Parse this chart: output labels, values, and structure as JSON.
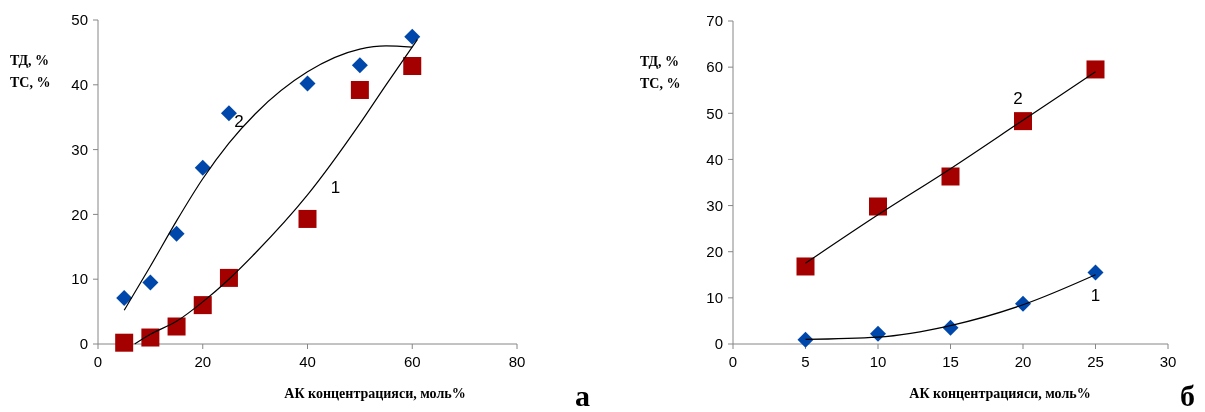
{
  "chart_data": [
    {
      "type": "scatter",
      "xlabel": "АК концентрацияси, моль%",
      "ylabel": "ТД, %\nТС, %",
      "xlim": [
        0,
        80
      ],
      "xticks": [
        0,
        20,
        40,
        60,
        80
      ],
      "ylim": [
        0,
        50
      ],
      "yticks": [
        0,
        10,
        20,
        30,
        40,
        50
      ],
      "grid": false,
      "x": [
        5,
        10,
        15,
        20,
        25,
        40,
        50,
        60
      ],
      "series": [
        {
          "marker": "diamond",
          "color": "#0047ab",
          "values": [
            7.1,
            9.5,
            17,
            27.2,
            35.6,
            40.2,
            43,
            47.4
          ]
        },
        {
          "marker": "square",
          "color": "#a50000",
          "values": [
            0.2,
            1,
            2.7,
            6,
            10.2,
            19.3,
            39.2,
            42.9
          ]
        },
        {
          "type": "line",
          "name": "2",
          "marker": "none",
          "color": "#000000",
          "x": [
            5,
            10,
            15,
            20,
            25,
            30,
            40,
            50,
            55,
            60
          ],
          "values": [
            5.2,
            12,
            19,
            25.5,
            31,
            35.5,
            42,
            45.5,
            46,
            45.8
          ]
        },
        {
          "type": "line",
          "name": "1",
          "marker": "none",
          "color": "#000000",
          "x": [
            7,
            10,
            15,
            20,
            25,
            30,
            40,
            50,
            55,
            61
          ],
          "values": [
            0,
            1.5,
            3.5,
            6.5,
            10,
            14,
            23,
            34,
            40,
            47
          ]
        }
      ],
      "annotations": [
        "а"
      ]
    },
    {
      "type": "scatter",
      "xlabel": "АК концентрацияси, моль%",
      "ylabel": "ТД, %\nТС, %",
      "xlim": [
        0,
        30
      ],
      "xticks": [
        0,
        5,
        10,
        15,
        20,
        25,
        30
      ],
      "ylim": [
        0,
        70
      ],
      "yticks": [
        0,
        10,
        20,
        30,
        40,
        50,
        60,
        70
      ],
      "grid": false,
      "x": [
        5,
        10,
        15,
        20,
        25
      ],
      "series": [
        {
          "marker": "square",
          "color": "#a50000",
          "values": [
            16.8,
            29.8,
            36.3,
            48.3,
            59.5
          ]
        },
        {
          "marker": "diamond",
          "color": "#0047ab",
          "values": [
            0.9,
            2.2,
            3.5,
            8.7,
            15.5
          ]
        },
        {
          "type": "line",
          "name": "2",
          "marker": "none",
          "color": "#000000",
          "x": [
            5,
            10,
            15,
            20,
            25
          ],
          "values": [
            17.5,
            28,
            38,
            48.5,
            59
          ]
        },
        {
          "type": "line",
          "name": "1",
          "marker": "none",
          "color": "#000000",
          "x": [
            5,
            10,
            15,
            20,
            25
          ],
          "values": [
            1,
            1.5,
            4,
            8.5,
            15
          ]
        }
      ],
      "annotations": [
        "б"
      ]
    }
  ]
}
